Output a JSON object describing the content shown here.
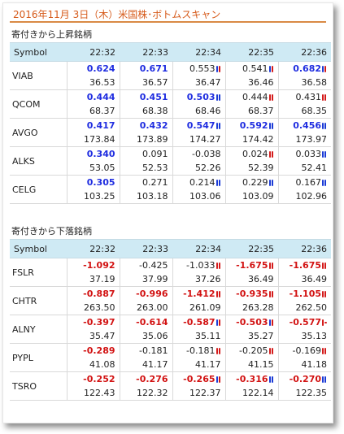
{
  "header": {
    "title": "2016年11月 3日（木）米国株･ボトムスキャン"
  },
  "sections": [
    {
      "title": "寄付きから上昇銘柄",
      "columns": [
        "Symbol",
        "22:32",
        "22:33",
        "22:34",
        "22:35",
        "22:36"
      ],
      "rows": [
        {
          "symbol": "VIAB",
          "changes": [
            {
              "v": "0.624",
              "s": "up",
              "m": ""
            },
            {
              "v": "0.671",
              "s": "up",
              "m": ""
            },
            {
              "v": "0.553",
              "s": "plain",
              "m": "mixed"
            },
            {
              "v": "0.541",
              "s": "plain",
              "m": "mixed"
            },
            {
              "v": "0.682",
              "s": "up",
              "m": "mixed"
            }
          ],
          "prices": [
            "36.53",
            "36.57",
            "36.47",
            "36.46",
            "36.58"
          ]
        },
        {
          "symbol": "QCOM",
          "changes": [
            {
              "v": "0.444",
              "s": "up",
              "m": ""
            },
            {
              "v": "0.451",
              "s": "up",
              "m": ""
            },
            {
              "v": "0.503",
              "s": "up",
              "m": "blue"
            },
            {
              "v": "0.444",
              "s": "plain",
              "m": "red"
            },
            {
              "v": "0.431",
              "s": "plain",
              "m": "red"
            }
          ],
          "prices": [
            "68.37",
            "68.38",
            "68.46",
            "68.37",
            "68.35"
          ]
        },
        {
          "symbol": "AVGO",
          "changes": [
            {
              "v": "0.417",
              "s": "up",
              "m": ""
            },
            {
              "v": "0.432",
              "s": "up",
              "m": ""
            },
            {
              "v": "0.547",
              "s": "up",
              "m": "blue"
            },
            {
              "v": "0.592",
              "s": "up",
              "m": "blue"
            },
            {
              "v": "0.456",
              "s": "up",
              "m": "blue"
            }
          ],
          "prices": [
            "173.84",
            "173.89",
            "174.27",
            "174.42",
            "173.97"
          ]
        },
        {
          "symbol": "ALKS",
          "changes": [
            {
              "v": "0.340",
              "s": "up",
              "m": ""
            },
            {
              "v": "0.091",
              "s": "plain",
              "m": ""
            },
            {
              "v": "-0.038",
              "s": "plain",
              "m": ""
            },
            {
              "v": "0.024",
              "s": "plain",
              "m": "red"
            },
            {
              "v": "0.033",
              "s": "plain",
              "m": "blue"
            }
          ],
          "prices": [
            "53.05",
            "52.53",
            "52.26",
            "52.39",
            "52.41"
          ]
        },
        {
          "symbol": "CELG",
          "changes": [
            {
              "v": "0.305",
              "s": "up",
              "m": ""
            },
            {
              "v": "0.271",
              "s": "plain",
              "m": ""
            },
            {
              "v": "0.214",
              "s": "plain",
              "m": "blue"
            },
            {
              "v": "0.229",
              "s": "plain",
              "m": "blue"
            },
            {
              "v": "0.167",
              "s": "plain",
              "m": "blue"
            }
          ],
          "prices": [
            "103.25",
            "103.18",
            "103.06",
            "103.09",
            "102.96"
          ]
        }
      ]
    },
    {
      "title": "寄付きから下落銘柄",
      "columns": [
        "Symbol",
        "22:32",
        "22:33",
        "22:34",
        "22:35",
        "22:36"
      ],
      "rows": [
        {
          "symbol": "FSLR",
          "changes": [
            {
              "v": "-1.092",
              "s": "dn",
              "m": ""
            },
            {
              "v": "-0.425",
              "s": "plain",
              "m": ""
            },
            {
              "v": "-1.033",
              "s": "plain",
              "m": "red"
            },
            {
              "v": "-1.675",
              "s": "dn",
              "m": "red"
            },
            {
              "v": "-1.675",
              "s": "dn",
              "m": "red"
            }
          ],
          "prices": [
            "37.19",
            "37.99",
            "37.26",
            "36.49",
            "36.49"
          ]
        },
        {
          "symbol": "CHTR",
          "changes": [
            {
              "v": "-0.887",
              "s": "dn",
              "m": ""
            },
            {
              "v": "-0.996",
              "s": "dn",
              "m": ""
            },
            {
              "v": "-1.412",
              "s": "dn",
              "m": "red"
            },
            {
              "v": "-0.935",
              "s": "dn",
              "m": "red"
            },
            {
              "v": "-1.105",
              "s": "dn",
              "m": "red"
            }
          ],
          "prices": [
            "263.50",
            "263.00",
            "261.09",
            "263.28",
            "262.50"
          ]
        },
        {
          "symbol": "ALNY",
          "changes": [
            {
              "v": "-0.397",
              "s": "dn",
              "m": ""
            },
            {
              "v": "-0.614",
              "s": "dn",
              "m": ""
            },
            {
              "v": "-0.587",
              "s": "dn",
              "m": "mixed"
            },
            {
              "v": "-0.503",
              "s": "dn",
              "m": "mixed"
            },
            {
              "v": "-0.577",
              "s": "dn",
              "m": "dash"
            }
          ],
          "prices": [
            "35.47",
            "35.06",
            "35.11",
            "35.27",
            "35.13"
          ]
        },
        {
          "symbol": "PYPL",
          "changes": [
            {
              "v": "-0.289",
              "s": "dn",
              "m": ""
            },
            {
              "v": "-0.181",
              "s": "plain",
              "m": ""
            },
            {
              "v": "-0.181",
              "s": "plain",
              "m": "red"
            },
            {
              "v": "-0.205",
              "s": "plain",
              "m": "red"
            },
            {
              "v": "-0.169",
              "s": "plain",
              "m": "red"
            }
          ],
          "prices": [
            "41.08",
            "41.17",
            "41.17",
            "41.15",
            "41.18"
          ]
        },
        {
          "symbol": "TSRO",
          "changes": [
            {
              "v": "-0.252",
              "s": "dn",
              "m": ""
            },
            {
              "v": "-0.276",
              "s": "dn",
              "m": ""
            },
            {
              "v": "-0.265",
              "s": "dn",
              "m": "mixed"
            },
            {
              "v": "-0.316",
              "s": "dn",
              "m": "blue"
            },
            {
              "v": "-0.270",
              "s": "dn",
              "m": "blue"
            }
          ],
          "prices": [
            "122.43",
            "122.32",
            "122.37",
            "122.14",
            "122.35"
          ]
        }
      ]
    }
  ],
  "colors": {
    "header": "#d65a1a",
    "table_header_bg": "#cfeaf4",
    "up": "#1f2de0",
    "down": "#d21212"
  }
}
